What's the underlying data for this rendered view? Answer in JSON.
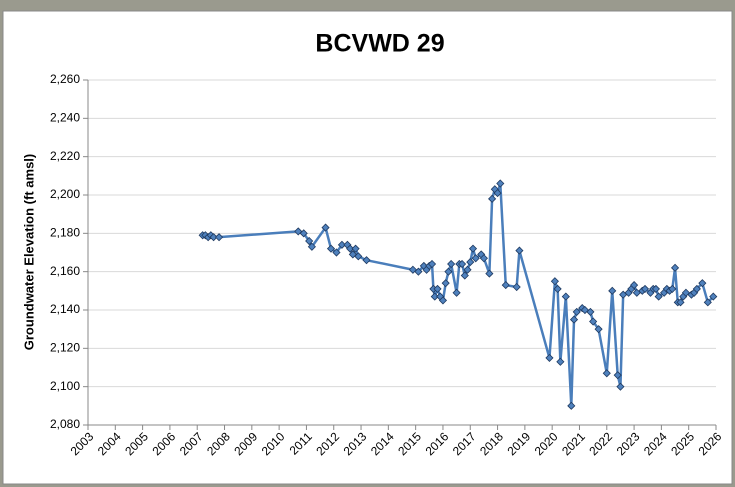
{
  "chart_data": {
    "type": "line",
    "title": "BCVWD 29",
    "y_label": "Groundwater Elevation (ft amsl)",
    "x": [
      2007.2,
      2007.3,
      2007.4,
      2007.5,
      2007.6,
      2007.8,
      2010.7,
      2010.9,
      2011.1,
      2011.2,
      2011.7,
      2011.9,
      2012.1,
      2012.3,
      2012.5,
      2012.6,
      2012.7,
      2012.8,
      2012.9,
      2013.2,
      2014.9,
      2015.1,
      2015.3,
      2015.4,
      2015.5,
      2015.6,
      2015.65,
      2015.7,
      2015.8,
      2015.9,
      2016.0,
      2016.1,
      2016.2,
      2016.3,
      2016.5,
      2016.6,
      2016.7,
      2016.8,
      2016.9,
      2017.0,
      2017.1,
      2017.2,
      2017.4,
      2017.5,
      2017.7,
      2017.8,
      2017.9,
      2018.0,
      2018.1,
      2018.3,
      2018.7,
      2018.8,
      2019.9,
      2020.1,
      2020.2,
      2020.3,
      2020.5,
      2020.7,
      2020.8,
      2020.9,
      2021.1,
      2021.2,
      2021.4,
      2021.5,
      2021.7,
      2022.0,
      2022.2,
      2022.4,
      2022.5,
      2022.6,
      2022.8,
      2022.9,
      2023.0,
      2023.1,
      2023.3,
      2023.4,
      2023.6,
      2023.7,
      2023.8,
      2023.9,
      2024.1,
      2024.2,
      2024.3,
      2024.4,
      2024.5,
      2024.6,
      2024.7,
      2024.8,
      2024.9,
      2025.1,
      2025.2,
      2025.3,
      2025.5,
      2025.7,
      2025.9
    ],
    "series": [
      {
        "name": "BCVWD 29",
        "color": "#4a7ebb",
        "marker_color": "#4f81bd",
        "values": [
          2179,
          2179,
          2178,
          2179,
          2178,
          2178,
          2181,
          2180,
          2176,
          2173,
          2183,
          2172,
          2170,
          2174,
          2174,
          2172,
          2169,
          2172,
          2168,
          2166,
          2161,
          2160,
          2163,
          2161,
          2163,
          2164,
          2151,
          2147,
          2151,
          2147,
          2145,
          2154,
          2160,
          2164,
          2149,
          2164,
          2164,
          2158,
          2161,
          2165,
          2172,
          2167,
          2169,
          2167,
          2159,
          2198,
          2203,
          2201,
          2206,
          2153,
          2152,
          2171,
          2115,
          2155,
          2151,
          2113,
          2147,
          2090,
          2135,
          2139,
          2141,
          2140,
          2139,
          2134,
          2130,
          2107,
          2150,
          2106,
          2100,
          2148,
          2149,
          2151,
          2153,
          2149,
          2150,
          2151,
          2149,
          2151,
          2151,
          2147,
          2149,
          2151,
          2150,
          2151,
          2162,
          2144,
          2144,
          2147,
          2149,
          2148,
          2149,
          2151,
          2154,
          2144,
          2147
        ]
      }
    ],
    "xlim": [
      2003,
      2026
    ],
    "xticks": [
      2003,
      2004,
      2005,
      2006,
      2007,
      2008,
      2009,
      2010,
      2011,
      2012,
      2013,
      2014,
      2015,
      2016,
      2017,
      2018,
      2019,
      2020,
      2021,
      2022,
      2023,
      2024,
      2025,
      2026
    ],
    "ylim": [
      2080,
      2260
    ],
    "yticks": [
      {
        "value": 2080,
        "label": "2,080"
      },
      {
        "value": 2100,
        "label": "2,100"
      },
      {
        "value": 2120,
        "label": "2,120"
      },
      {
        "value": 2140,
        "label": "2,140"
      },
      {
        "value": 2160,
        "label": "2,160"
      },
      {
        "value": 2180,
        "label": "2,180"
      },
      {
        "value": 2200,
        "label": "2,200"
      },
      {
        "value": 2220,
        "label": "2,220"
      },
      {
        "value": 2240,
        "label": "2,240"
      },
      {
        "value": 2260,
        "label": "2,260"
      }
    ],
    "grid": true
  }
}
